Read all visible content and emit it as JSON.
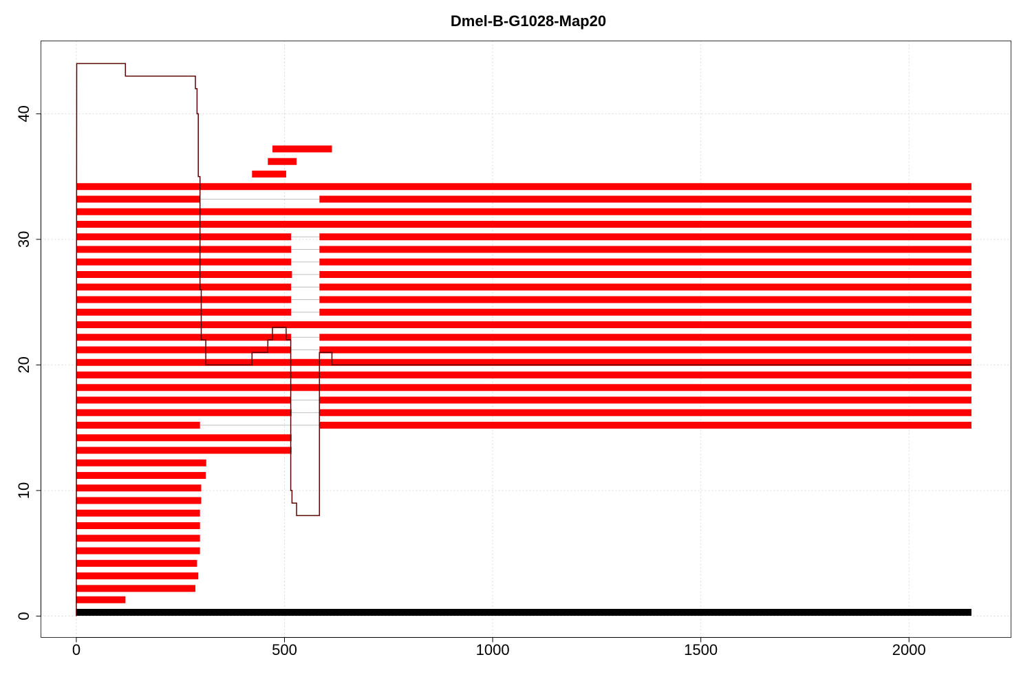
{
  "chart_data": {
    "type": "bar",
    "title": "Dmel-B-G1028-Map20",
    "xlabel": "",
    "ylabel": "",
    "xlim": [
      -85,
      2245
    ],
    "ylim": [
      -1.7,
      45.8
    ],
    "x_ticks": [
      0,
      500,
      1000,
      1500,
      2000
    ],
    "y_ticks": [
      0,
      10,
      20,
      30,
      40
    ],
    "grid": true,
    "colors": {
      "reads": "#ff0000",
      "reference": "#000000",
      "coverage": "#5a0000",
      "gap": "#bdbdbd",
      "grid": "#d9d9d9"
    },
    "reference": {
      "y": 0.3,
      "x": [
        0,
        2150
      ]
    },
    "reads": [
      {
        "y": 1.3,
        "segments": [
          [
            0,
            118
          ]
        ]
      },
      {
        "y": 2.2,
        "segments": [
          [
            0,
            286
          ]
        ]
      },
      {
        "y": 3.2,
        "segments": [
          [
            0,
            293
          ]
        ]
      },
      {
        "y": 4.2,
        "segments": [
          [
            0,
            290
          ]
        ]
      },
      {
        "y": 5.2,
        "segments": [
          [
            0,
            297
          ]
        ]
      },
      {
        "y": 6.2,
        "segments": [
          [
            0,
            297
          ]
        ]
      },
      {
        "y": 7.2,
        "segments": [
          [
            0,
            297
          ]
        ]
      },
      {
        "y": 8.2,
        "segments": [
          [
            0,
            297
          ]
        ]
      },
      {
        "y": 9.2,
        "segments": [
          [
            0,
            300
          ]
        ]
      },
      {
        "y": 10.2,
        "segments": [
          [
            0,
            300
          ]
        ]
      },
      {
        "y": 11.2,
        "segments": [
          [
            0,
            311
          ]
        ]
      },
      {
        "y": 12.2,
        "segments": [
          [
            0,
            312
          ]
        ]
      },
      {
        "y": 13.2,
        "segments": [
          [
            0,
            517
          ]
        ]
      },
      {
        "y": 14.2,
        "segments": [
          [
            0,
            517
          ]
        ]
      },
      {
        "y": 15.2,
        "segments": [
          [
            0,
            297
          ],
          [
            584,
            2150
          ]
        ]
      },
      {
        "y": 16.2,
        "segments": [
          [
            0,
            517
          ],
          [
            584,
            2150
          ]
        ]
      },
      {
        "y": 17.2,
        "segments": [
          [
            0,
            515
          ],
          [
            584,
            2150
          ]
        ]
      },
      {
        "y": 18.2,
        "segments": [
          [
            0,
            2150
          ]
        ]
      },
      {
        "y": 19.2,
        "segments": [
          [
            0,
            2150
          ]
        ]
      },
      {
        "y": 20.2,
        "segments": [
          [
            0,
            2150
          ]
        ]
      },
      {
        "y": 21.2,
        "segments": [
          [
            0,
            516
          ],
          [
            584,
            2150
          ]
        ]
      },
      {
        "y": 22.2,
        "segments": [
          [
            0,
            516
          ],
          [
            584,
            2150
          ]
        ]
      },
      {
        "y": 23.2,
        "segments": [
          [
            0,
            2150
          ]
        ]
      },
      {
        "y": 24.2,
        "segments": [
          [
            0,
            516
          ],
          [
            584,
            2150
          ]
        ]
      },
      {
        "y": 25.2,
        "segments": [
          [
            0,
            516
          ],
          [
            584,
            2150
          ]
        ]
      },
      {
        "y": 26.2,
        "segments": [
          [
            0,
            516
          ],
          [
            584,
            2150
          ]
        ]
      },
      {
        "y": 27.2,
        "segments": [
          [
            0,
            518
          ],
          [
            584,
            2150
          ]
        ]
      },
      {
        "y": 28.2,
        "segments": [
          [
            0,
            516
          ],
          [
            584,
            2150
          ]
        ]
      },
      {
        "y": 29.2,
        "segments": [
          [
            0,
            516
          ],
          [
            584,
            2150
          ]
        ]
      },
      {
        "y": 30.2,
        "segments": [
          [
            0,
            516
          ],
          [
            584,
            2150
          ]
        ]
      },
      {
        "y": 31.2,
        "segments": [
          [
            0,
            2150
          ]
        ]
      },
      {
        "y": 32.2,
        "segments": [
          [
            0,
            2150
          ]
        ]
      },
      {
        "y": 33.2,
        "segments": [
          [
            0,
            297
          ],
          [
            584,
            2150
          ]
        ]
      },
      {
        "y": 34.2,
        "segments": [
          [
            0,
            2150
          ]
        ]
      },
      {
        "y": 35.2,
        "segments": [
          [
            422,
            504
          ]
        ]
      },
      {
        "y": 36.2,
        "segments": [
          [
            460,
            529
          ]
        ]
      },
      {
        "y": 37.2,
        "segments": [
          [
            471,
            614
          ]
        ]
      }
    ],
    "coverage": {
      "x": [
        0,
        1,
        118,
        118,
        286,
        286,
        290,
        290,
        293,
        293,
        297,
        297,
        300,
        300,
        311,
        311,
        422,
        422,
        460,
        460,
        471,
        471,
        504,
        504,
        515,
        515,
        518,
        518,
        529,
        529,
        584,
        584,
        614,
        614,
        2150
      ],
      "y": [
        0,
        44,
        44,
        43,
        43,
        42,
        42,
        40,
        40,
        35,
        35,
        26,
        26,
        22,
        22,
        20,
        20,
        21,
        21,
        22,
        22,
        23,
        23,
        22,
        22,
        10,
        10,
        9,
        9,
        8,
        8,
        21,
        21,
        20,
        20
      ]
    }
  }
}
